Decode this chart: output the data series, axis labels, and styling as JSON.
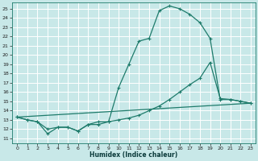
{
  "xlabel": "Humidex (Indice chaleur)",
  "bg_color": "#c8e8e8",
  "grid_color": "#aad4d4",
  "line_color": "#1e7b6b",
  "xlim": [
    -0.5,
    23.5
  ],
  "ylim": [
    10.5,
    25.7
  ],
  "xticks": [
    0,
    1,
    2,
    3,
    4,
    5,
    6,
    7,
    8,
    9,
    10,
    11,
    12,
    13,
    14,
    15,
    16,
    17,
    18,
    19,
    20,
    21,
    22,
    23
  ],
  "yticks": [
    11,
    12,
    13,
    14,
    15,
    16,
    17,
    18,
    19,
    20,
    21,
    22,
    23,
    24,
    25
  ],
  "curve1_x": [
    0,
    1,
    2,
    3,
    4,
    5,
    6,
    7,
    8,
    9,
    10,
    11,
    12,
    13,
    14,
    15,
    16,
    17,
    18,
    19,
    20,
    21,
    22,
    23
  ],
  "curve1_y": [
    13.3,
    13.0,
    12.8,
    11.5,
    12.2,
    12.2,
    11.8,
    12.5,
    12.8,
    12.8,
    16.5,
    19.0,
    21.5,
    21.8,
    24.8,
    25.3,
    25.0,
    24.4,
    23.5,
    21.8,
    15.2,
    15.2,
    15.0,
    14.8
  ],
  "curve2_x": [
    0,
    1,
    2,
    3,
    4,
    5,
    6,
    7,
    8,
    9,
    10,
    11,
    12,
    13,
    14,
    15,
    16,
    17,
    18,
    19,
    20,
    21,
    22,
    23
  ],
  "curve2_y": [
    13.3,
    13.0,
    12.8,
    12.0,
    12.2,
    12.2,
    11.8,
    12.5,
    12.5,
    12.8,
    13.0,
    13.2,
    13.5,
    14.0,
    14.5,
    15.2,
    16.0,
    16.8,
    17.5,
    19.2,
    15.3,
    15.2,
    15.0,
    14.8
  ],
  "line_x": [
    0,
    23
  ],
  "line_y": [
    13.3,
    14.8
  ]
}
